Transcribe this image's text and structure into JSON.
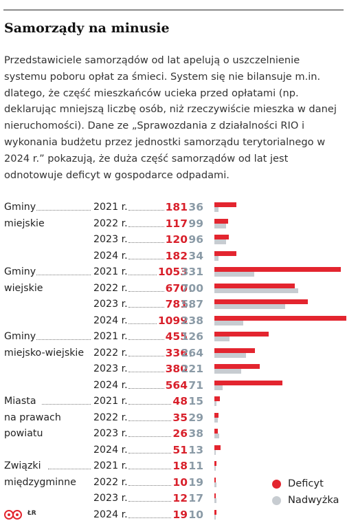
{
  "title": "Samorządy na minusie",
  "intro": "Przedstawiciele samorządów od lat apelują o uszczelnienie systemu poboru opłat za śmieci. System się nie bilansuje m.in. dlatego, że część mieszkańców ucieka przed opłatami (np. deklarując mniejszą liczbę osób, niż rzeczywiście mieszka w danej nieruchomości). Dane ze „Sprawozdania z działalności RIO i wykonania budżetu przez jednostki samorządu terytorialnego w 2024 r.” pokazują, że duża część samorządów od lat jest odnotowuje deficyt w gospodarce odpadami.",
  "legend": {
    "deficit": "Deficyt",
    "surplus": "Nadwyżka"
  },
  "credit": "ŁR",
  "colors": {
    "deficit": "#e3252f",
    "surplus": "#c7ccd1",
    "deficit_text": "#d8202b",
    "surplus_text": "#8a9aa6"
  },
  "chart_data": {
    "type": "bar",
    "orientation": "horizontal",
    "series": [
      {
        "name": "Deficyt"
      },
      {
        "name": "Nadwyżka"
      }
    ],
    "groups": [
      {
        "label_lines": [
          "Gminy",
          "miejskie"
        ],
        "rows": [
          {
            "year": "2021 r.",
            "deficit": 181,
            "surplus": 36
          },
          {
            "year": "2022 r.",
            "deficit": 117,
            "surplus": 99
          },
          {
            "year": "2023 r.",
            "deficit": 120,
            "surplus": 96
          },
          {
            "year": "2024 r.",
            "deficit": 182,
            "surplus": 34
          }
        ]
      },
      {
        "label_lines": [
          "Gminy",
          "wiejskie"
        ],
        "rows": [
          {
            "year": "2021 r.",
            "deficit": 1053,
            "surplus": 331
          },
          {
            "year": "2022 r.",
            "deficit": 670,
            "surplus": 700
          },
          {
            "year": "2023 r.",
            "deficit": 781,
            "surplus": 587
          },
          {
            "year": "2024 r.",
            "deficit": 1099,
            "surplus": 238
          }
        ]
      },
      {
        "label_lines": [
          "Gminy",
          "miejsko-wiejskie"
        ],
        "rows": [
          {
            "year": "2021 r.",
            "deficit": 455,
            "surplus": 126
          },
          {
            "year": "2022 r.",
            "deficit": 336,
            "surplus": 264
          },
          {
            "year": "2023 r.",
            "deficit": 380,
            "surplus": 221
          },
          {
            "year": "2024 r.",
            "deficit": 564,
            "surplus": 71
          }
        ]
      },
      {
        "label_lines": [
          "Miasta",
          "na prawach",
          "powiatu"
        ],
        "rows": [
          {
            "year": "2021 r.",
            "deficit": 48,
            "surplus": 15
          },
          {
            "year": "2022 r.",
            "deficit": 35,
            "surplus": 29
          },
          {
            "year": "2023 r.",
            "deficit": 26,
            "surplus": 38
          },
          {
            "year": "2024 r.",
            "deficit": 51,
            "surplus": 13
          }
        ]
      },
      {
        "label_lines": [
          "Związki",
          "międzygminne"
        ],
        "rows": [
          {
            "year": "2021 r.",
            "deficit": 18,
            "surplus": 11
          },
          {
            "year": "2022 r.",
            "deficit": 10,
            "surplus": 19
          },
          {
            "year": "2023 r.",
            "deficit": 12,
            "surplus": 17
          },
          {
            "year": "2024 r.",
            "deficit": 19,
            "surplus": 10
          }
        ]
      }
    ],
    "xlim": [
      0,
      1099
    ]
  }
}
